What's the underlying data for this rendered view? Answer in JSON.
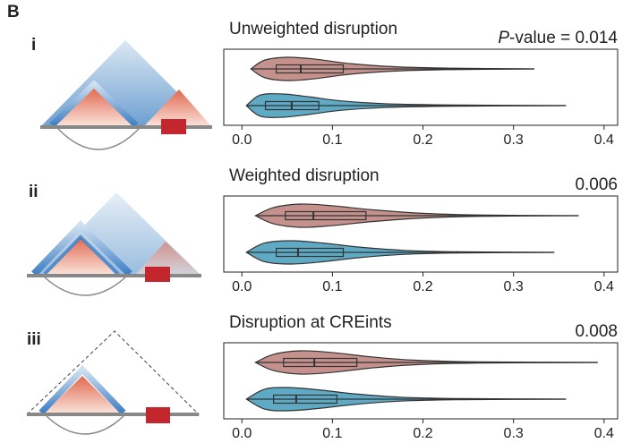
{
  "panel_label": "B",
  "row_labels": [
    "i",
    "ii",
    "iii"
  ],
  "chart_data": [
    {
      "type": "violin",
      "title": "Unweighted disruption",
      "annotation_italic": "P",
      "annotation": "-value = 0.014",
      "xlim": [
        -0.02,
        0.415
      ],
      "xticks": [
        {
          "value": 0,
          "label": "0.0"
        },
        {
          "value": 0.1,
          "label": "0.1"
        },
        {
          "value": 0.2,
          "label": "0.2"
        },
        {
          "value": 0.3,
          "label": "0.3"
        },
        {
          "value": 0.4,
          "label": "0.4"
        }
      ],
      "series": [
        {
          "color": "#c4918c",
          "box": {
            "whislo": 0.01,
            "q1": 0.038,
            "med": 0.065,
            "q3": 0.112,
            "whishi": 0.323
          },
          "violin": {
            "x": [
              0.01,
              0.025,
              0.05,
              0.08,
              0.12,
              0.17,
              0.23,
              0.323
            ],
            "density": [
              0,
              0.75,
              1,
              0.85,
              0.45,
              0.18,
              0.06,
              0
            ]
          }
        },
        {
          "color": "#5ea9c3",
          "box": {
            "whislo": 0.005,
            "q1": 0.026,
            "med": 0.055,
            "q3": 0.085,
            "whishi": 0.358
          },
          "violin": {
            "x": [
              0.005,
              0.02,
              0.045,
              0.075,
              0.11,
              0.16,
              0.24,
              0.358
            ],
            "density": [
              0,
              0.9,
              1,
              0.75,
              0.4,
              0.16,
              0.05,
              0
            ]
          }
        }
      ]
    },
    {
      "type": "violin",
      "title": "Weighted disruption",
      "annotation": "0.006",
      "xlim": [
        -0.02,
        0.415
      ],
      "xticks": [
        {
          "value": 0,
          "label": "0.0"
        },
        {
          "value": 0.1,
          "label": "0.1"
        },
        {
          "value": 0.2,
          "label": "0.2"
        },
        {
          "value": 0.3,
          "label": "0.3"
        },
        {
          "value": 0.4,
          "label": "0.4"
        }
      ],
      "series": [
        {
          "color": "#c4918c",
          "box": {
            "whislo": 0.015,
            "q1": 0.048,
            "med": 0.079,
            "q3": 0.137,
            "whishi": 0.372
          },
          "violin": {
            "x": [
              0.015,
              0.035,
              0.065,
              0.1,
              0.145,
              0.2,
              0.26,
              0.372
            ],
            "density": [
              0,
              0.7,
              1,
              0.85,
              0.5,
              0.2,
              0.06,
              0
            ]
          }
        },
        {
          "color": "#5ea9c3",
          "box": {
            "whislo": 0.005,
            "q1": 0.038,
            "med": 0.062,
            "q3": 0.112,
            "whishi": 0.345
          },
          "violin": {
            "x": [
              0.005,
              0.025,
              0.055,
              0.09,
              0.13,
              0.18,
              0.24,
              0.345
            ],
            "density": [
              0,
              0.8,
              1,
              0.8,
              0.45,
              0.17,
              0.05,
              0
            ]
          }
        }
      ]
    },
    {
      "type": "violin",
      "title": "Disruption at CREints",
      "annotation": "0.008",
      "xlim": [
        -0.02,
        0.415
      ],
      "xticks": [
        {
          "value": 0,
          "label": "0.0"
        },
        {
          "value": 0.1,
          "label": "0.1"
        },
        {
          "value": 0.2,
          "label": "0.2"
        },
        {
          "value": 0.3,
          "label": "0.3"
        },
        {
          "value": 0.4,
          "label": "0.4"
        }
      ],
      "series": [
        {
          "color": "#c4918c",
          "box": {
            "whislo": 0.015,
            "q1": 0.046,
            "med": 0.08,
            "q3": 0.127,
            "whishi": 0.393
          },
          "violin": {
            "x": [
              0.015,
              0.035,
              0.065,
              0.1,
              0.14,
              0.19,
              0.26,
              0.393
            ],
            "density": [
              0,
              0.7,
              1,
              0.85,
              0.5,
              0.2,
              0.05,
              0
            ]
          }
        },
        {
          "color": "#5ea9c3",
          "box": {
            "whislo": 0.005,
            "q1": 0.035,
            "med": 0.06,
            "q3": 0.105,
            "whishi": 0.358
          },
          "violin": {
            "x": [
              0.005,
              0.025,
              0.05,
              0.085,
              0.125,
              0.175,
              0.24,
              0.358
            ],
            "density": [
              0,
              0.85,
              1,
              0.8,
              0.45,
              0.17,
              0.05,
              0
            ]
          }
        }
      ]
    }
  ]
}
